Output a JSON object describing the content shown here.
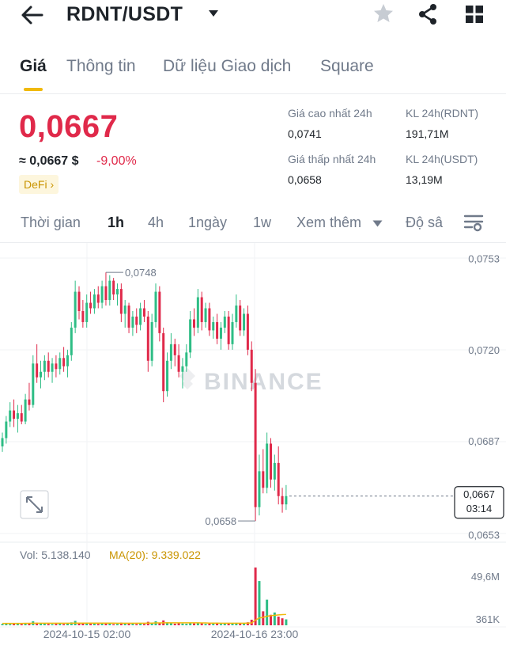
{
  "header": {
    "title": "RDNT/USDT",
    "icons": [
      "back-arrow-icon",
      "caret-down-icon",
      "star-icon",
      "share-icon",
      "grid-icon"
    ]
  },
  "tabs": [
    {
      "label": "Giá",
      "active": true
    },
    {
      "label": "Thông tin",
      "active": false
    },
    {
      "label": "Dữ liệu Giao dịch",
      "active": false
    },
    {
      "label": "Square",
      "active": false
    }
  ],
  "ticker": {
    "price": "0,0667",
    "approx_usd": "≈ 0,0667 $",
    "change": "-9,00%",
    "tag": "DeFi ›",
    "stats": {
      "high_label": "Giá cao nhất 24h",
      "high_value": "0,0741",
      "low_label": "Giá thấp nhất 24h",
      "low_value": "0,0658",
      "vol_base_label": "KL 24h(RDNT)",
      "vol_base_value": "191,71M",
      "vol_quote_label": "KL 24h(USDT)",
      "vol_quote_value": "13,19M"
    }
  },
  "timeframes": {
    "items": [
      {
        "label": "Thời gian",
        "active": false
      },
      {
        "label": "1h",
        "active": true
      },
      {
        "label": "4h",
        "active": false
      },
      {
        "label": "1ngày",
        "active": false
      },
      {
        "label": "1w",
        "active": false
      },
      {
        "label": "Xem thêm",
        "active": false
      },
      {
        "label": "Độ sâ",
        "active": false
      }
    ]
  },
  "colors": {
    "up": "#2ebd85",
    "down": "#e0294a",
    "accent": "#f0b90b",
    "ma": "#f0b90b"
  },
  "chart_data": {
    "type": "candlestick",
    "interval": "1h",
    "price_axis": {
      "range": [
        0.06526,
        0.07532
      ],
      "ticks": [
        "0,0753",
        "0,0720",
        "0,0687",
        "0,0653"
      ]
    },
    "last_price": {
      "value": 0.0667,
      "label": "0,0667",
      "countdown": "03:14"
    },
    "annotations": {
      "high": {
        "value": 0.0748,
        "label": "0,0748"
      },
      "low": {
        "value": 0.0658,
        "label": "0,0658"
      }
    },
    "watermark": "BINANCE",
    "x_labels": [
      "2024-10-15 02:00",
      "2024-10-16 23:00"
    ],
    "volume": {
      "vol_label": "Vol: 5.138.140",
      "ma_label": "MA(20): 9.339.022",
      "axis_ticks": [
        "49,6M",
        "361K"
      ],
      "max": 49.6
    },
    "candles": [
      [
        0.0685,
        0.069,
        0.0683,
        0.0688
      ],
      [
        0.0688,
        0.0696,
        0.0686,
        0.0694
      ],
      [
        0.0694,
        0.0701,
        0.0692,
        0.0698
      ],
      [
        0.0698,
        0.0702,
        0.0692,
        0.0695
      ],
      [
        0.0695,
        0.07,
        0.069,
        0.0697
      ],
      [
        0.0697,
        0.07,
        0.0693,
        0.0694
      ],
      [
        0.0694,
        0.0704,
        0.0693,
        0.0702
      ],
      [
        0.0702,
        0.0708,
        0.0698,
        0.07
      ],
      [
        0.07,
        0.0718,
        0.0699,
        0.0715
      ],
      [
        0.0715,
        0.0722,
        0.0708,
        0.071
      ],
      [
        0.071,
        0.0716,
        0.0706,
        0.0712
      ],
      [
        0.0712,
        0.0718,
        0.0709,
        0.0716
      ],
      [
        0.0716,
        0.0719,
        0.071,
        0.0712
      ],
      [
        0.0712,
        0.0717,
        0.0708,
        0.0715
      ],
      [
        0.0715,
        0.0718,
        0.071,
        0.0713
      ],
      [
        0.0713,
        0.0719,
        0.0711,
        0.0717
      ],
      [
        0.0717,
        0.0721,
        0.0712,
        0.0714
      ],
      [
        0.0714,
        0.072,
        0.071,
        0.0718
      ],
      [
        0.0718,
        0.073,
        0.0716,
        0.0728
      ],
      [
        0.0728,
        0.0745,
        0.0726,
        0.0741
      ],
      [
        0.0741,
        0.0743,
        0.0731,
        0.0734
      ],
      [
        0.0734,
        0.0738,
        0.0728,
        0.073
      ],
      [
        0.073,
        0.074,
        0.0728,
        0.0737
      ],
      [
        0.0737,
        0.0741,
        0.0733,
        0.0735
      ],
      [
        0.0735,
        0.0742,
        0.0733,
        0.074
      ],
      [
        0.074,
        0.0743,
        0.0735,
        0.0737
      ],
      [
        0.0737,
        0.0745,
        0.0735,
        0.0743
      ],
      [
        0.0743,
        0.0748,
        0.0736,
        0.0738
      ],
      [
        0.0738,
        0.0747,
        0.0736,
        0.0745
      ],
      [
        0.0745,
        0.0746,
        0.0738,
        0.074
      ],
      [
        0.074,
        0.0744,
        0.0736,
        0.0742
      ],
      [
        0.0742,
        0.0744,
        0.073,
        0.0733
      ],
      [
        0.0733,
        0.0738,
        0.0728,
        0.0736
      ],
      [
        0.0736,
        0.0737,
        0.0726,
        0.0728
      ],
      [
        0.0728,
        0.0734,
        0.0725,
        0.0732
      ],
      [
        0.0732,
        0.0735,
        0.0726,
        0.0729
      ],
      [
        0.0729,
        0.0737,
        0.0727,
        0.0735
      ],
      [
        0.0735,
        0.0738,
        0.073,
        0.0732
      ],
      [
        0.0732,
        0.0734,
        0.0712,
        0.0716
      ],
      [
        0.0716,
        0.0733,
        0.0714,
        0.073
      ],
      [
        0.073,
        0.0744,
        0.0728,
        0.0741
      ],
      [
        0.0741,
        0.0743,
        0.0723,
        0.0726
      ],
      [
        0.0726,
        0.0728,
        0.0701,
        0.0705
      ],
      [
        0.0705,
        0.0719,
        0.0703,
        0.0716
      ],
      [
        0.0716,
        0.0726,
        0.0713,
        0.0722
      ],
      [
        0.0722,
        0.0724,
        0.0714,
        0.0718
      ],
      [
        0.0718,
        0.0722,
        0.071,
        0.0712
      ],
      [
        0.0712,
        0.0717,
        0.0706,
        0.0714
      ],
      [
        0.0714,
        0.0722,
        0.0712,
        0.0719
      ],
      [
        0.0719,
        0.0734,
        0.0717,
        0.0731
      ],
      [
        0.0731,
        0.0735,
        0.0725,
        0.0728
      ],
      [
        0.0728,
        0.0742,
        0.0726,
        0.0739
      ],
      [
        0.0739,
        0.0741,
        0.0727,
        0.073
      ],
      [
        0.073,
        0.0737,
        0.0728,
        0.0735
      ],
      [
        0.0735,
        0.0737,
        0.0725,
        0.0727
      ],
      [
        0.0727,
        0.0732,
        0.0724,
        0.073
      ],
      [
        0.073,
        0.0733,
        0.0722,
        0.0724
      ],
      [
        0.0724,
        0.073,
        0.072,
        0.0728
      ],
      [
        0.0728,
        0.0734,
        0.0726,
        0.0732
      ],
      [
        0.0732,
        0.0734,
        0.072,
        0.0722
      ],
      [
        0.0722,
        0.0733,
        0.072,
        0.073
      ],
      [
        0.073,
        0.074,
        0.0728,
        0.0736
      ],
      [
        0.0736,
        0.0738,
        0.0725,
        0.0727
      ],
      [
        0.0727,
        0.0735,
        0.0725,
        0.0733
      ],
      [
        0.0733,
        0.0736,
        0.0718,
        0.072
      ],
      [
        0.072,
        0.0723,
        0.0705,
        0.0708
      ],
      [
        0.0708,
        0.0713,
        0.0658,
        0.0663
      ],
      [
        0.0663,
        0.0682,
        0.066,
        0.0676
      ],
      [
        0.0676,
        0.0684,
        0.0668,
        0.067
      ],
      [
        0.067,
        0.069,
        0.0668,
        0.0686
      ],
      [
        0.0686,
        0.0688,
        0.067,
        0.0673
      ],
      [
        0.0673,
        0.0682,
        0.0669,
        0.0679
      ],
      [
        0.0679,
        0.0685,
        0.0664,
        0.0667
      ],
      [
        0.0667,
        0.067,
        0.0661,
        0.0664
      ],
      [
        0.0664,
        0.0671,
        0.0662,
        0.0667
      ]
    ],
    "volumes": [
      1.2,
      1.5,
      1.0,
      1.8,
      1.3,
      1.1,
      2.0,
      1.7,
      3.5,
      2.2,
      1.4,
      1.6,
      1.2,
      1.0,
      1.3,
      1.5,
      1.1,
      1.4,
      2.5,
      3.8,
      2.0,
      1.5,
      1.8,
      1.3,
      1.6,
      1.2,
      2.1,
      1.9,
      1.4,
      1.0,
      1.2,
      2.3,
      1.5,
      1.9,
      1.3,
      1.1,
      1.6,
      1.2,
      3.0,
      2.1,
      3.5,
      2.4,
      4.2,
      2.6,
      1.8,
      1.4,
      1.9,
      1.5,
      1.3,
      2.2,
      1.6,
      2.4,
      1.9,
      1.2,
      1.5,
      1.3,
      1.4,
      1.2,
      1.6,
      1.8,
      1.5,
      2.1,
      1.7,
      1.3,
      2.6,
      4.8,
      49.6,
      38.0,
      12.0,
      22.0,
      9.0,
      11.0,
      7.5,
      6.0,
      5.1
    ],
    "ma_line": [
      1.6,
      1.6,
      1.6,
      1.6,
      1.6,
      1.6,
      1.7,
      1.7,
      1.8,
      1.8,
      1.8,
      1.8,
      1.8,
      1.8,
      1.8,
      1.8,
      1.8,
      1.8,
      1.8,
      1.9,
      1.9,
      1.9,
      1.9,
      1.9,
      1.9,
      1.9,
      1.9,
      1.9,
      1.9,
      1.9,
      1.8,
      1.8,
      1.8,
      1.8,
      1.8,
      1.8,
      1.8,
      1.8,
      1.9,
      1.9,
      2.0,
      2.0,
      2.1,
      2.1,
      2.1,
      2.1,
      2.1,
      2.1,
      2.1,
      2.1,
      2.1,
      2.1,
      2.0,
      2.0,
      1.9,
      1.9,
      1.9,
      1.8,
      1.8,
      1.8,
      1.8,
      1.8,
      1.8,
      1.8,
      1.9,
      2.0,
      4.4,
      6.3,
      6.8,
      7.8,
      8.2,
      8.6,
      8.9,
      9.2,
      9.3
    ]
  }
}
